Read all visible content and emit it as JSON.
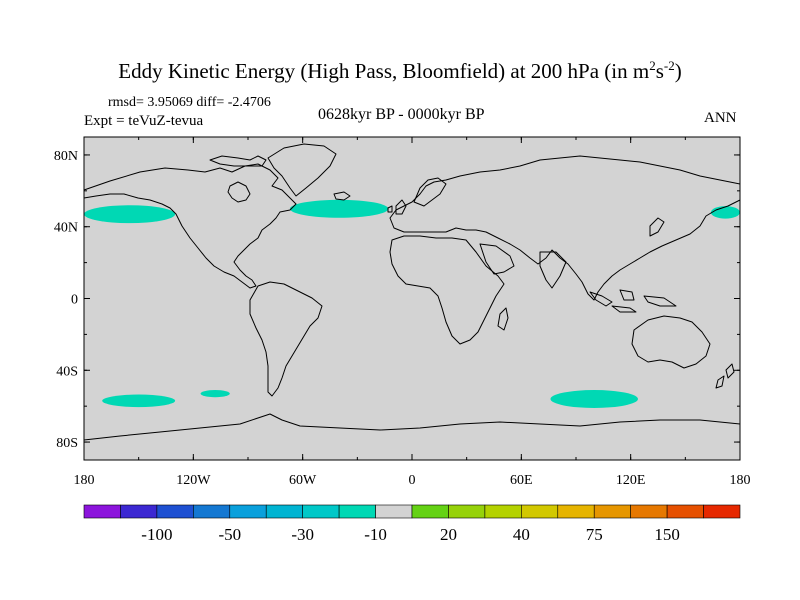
{
  "figure": {
    "title_main": "Eddy Kinetic Energy (High Pass, Bloomfield) at 200 hPa (in m",
    "title_sup1": "2",
    "title_mid": "s",
    "title_sup2": "-2",
    "title_end": ")",
    "stats": "rmsd= 3.95069 diff= -2.4706",
    "experiment": "Expt = teVuZ-tevua",
    "period": "0628kyr BP - 0000kyr BP",
    "season": "ANN"
  },
  "map": {
    "projection": "cylindrical-equidistant",
    "lon_range": [
      -180,
      180
    ],
    "lat_range": [
      -90,
      90
    ],
    "ocean_fill": "#d3d3d3",
    "coastline_color": "#000000",
    "lat_labels": [
      {
        "lat": 80,
        "text": "80N"
      },
      {
        "lat": 40,
        "text": "40N"
      },
      {
        "lat": 0,
        "text": "0"
      },
      {
        "lat": -40,
        "text": "40S"
      },
      {
        "lat": -80,
        "text": "80S"
      }
    ],
    "lon_labels": [
      {
        "lon": -180,
        "text": "180"
      },
      {
        "lon": -120,
        "text": "120W"
      },
      {
        "lon": -60,
        "text": "60W"
      },
      {
        "lon": 0,
        "text": "0"
      },
      {
        "lon": 60,
        "text": "60E"
      },
      {
        "lon": 120,
        "text": "120E"
      },
      {
        "lon": 180,
        "text": "180"
      }
    ],
    "anomaly_regions": [
      {
        "name": "north-pacific-east",
        "lon_center": -155,
        "lat_center": 47,
        "lon_halfwidth": 25,
        "lat_halfwidth": 5,
        "color": "#00d8b4"
      },
      {
        "name": "north-pacific-west",
        "lon_center": 172,
        "lat_center": 48,
        "lon_halfwidth": 8,
        "lat_halfwidth": 3.5,
        "color": "#00d8b4"
      },
      {
        "name": "north-atlantic",
        "lon_center": -40,
        "lat_center": 50,
        "lon_halfwidth": 27,
        "lat_halfwidth": 5,
        "color": "#00d8b4"
      },
      {
        "name": "south-pacific",
        "lon_center": -150,
        "lat_center": -57,
        "lon_halfwidth": 20,
        "lat_halfwidth": 3.5,
        "color": "#00d8b4"
      },
      {
        "name": "south-pacific-small",
        "lon_center": -108,
        "lat_center": -53,
        "lon_halfwidth": 8,
        "lat_halfwidth": 2,
        "color": "#00d8b4"
      },
      {
        "name": "south-indian",
        "lon_center": 100,
        "lat_center": -56,
        "lon_halfwidth": 24,
        "lat_halfwidth": 5,
        "color": "#00d8b4"
      }
    ]
  },
  "colorbar": {
    "colors": [
      "#8c14dc",
      "#3c28d2",
      "#1e50d2",
      "#1478d2",
      "#0aa0dc",
      "#00b4d2",
      "#00c8c8",
      "#00d8b4",
      "#d3d3d3",
      "#64d214",
      "#96d20a",
      "#b4d200",
      "#d2c800",
      "#e6b400",
      "#e69600",
      "#e67800",
      "#e65000",
      "#e62800"
    ],
    "labels": [
      "-100",
      "-50",
      "-30",
      "-10",
      "20",
      "40",
      "75",
      "150"
    ]
  }
}
